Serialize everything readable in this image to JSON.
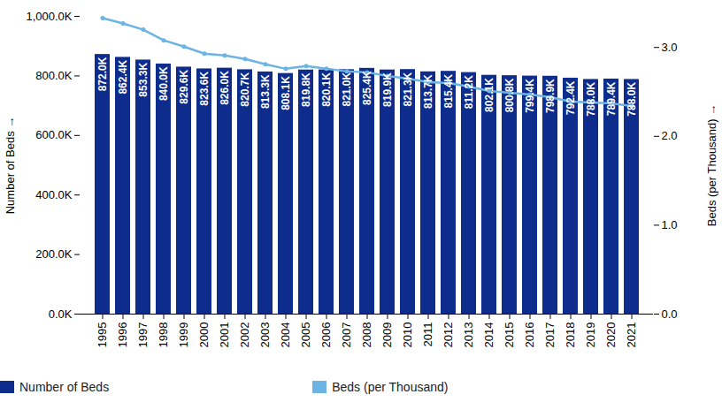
{
  "chart_data": {
    "type": "bar",
    "y_label": "Number of Beds",
    "y2_label": "Beds (per Thousand)",
    "categories": [
      "1995",
      "1996",
      "1997",
      "1998",
      "1999",
      "2000",
      "2001",
      "2002",
      "2003",
      "2004",
      "2005",
      "2006",
      "2007",
      "2008",
      "2009",
      "2010",
      "2011",
      "2012",
      "2013",
      "2014",
      "2015",
      "2016",
      "2017",
      "2018",
      "2019",
      "2020",
      "2021"
    ],
    "series": [
      {
        "name": "Number of Beds",
        "type": "bar",
        "color": "#0d2c8c",
        "values": [
          872000,
          862400,
          853300,
          840000,
          829600,
          823600,
          826000,
          820700,
          813300,
          808100,
          819800,
          820100,
          821000,
          825400,
          819900,
          821300,
          813700,
          815400,
          811200,
          802100,
          800800,
          799400,
          798900,
          792400,
          788000,
          789400,
          788000
        ],
        "value_labels": [
          "872.0K",
          "862.4K",
          "853.3K",
          "840.0K",
          "829.6K",
          "823.6K",
          "826.0K",
          "820.7K",
          "813.3K",
          "808.1K",
          "819.8K",
          "820.1K",
          "821.0K",
          "825.4K",
          "819.9K",
          "821.3K",
          "813.7K",
          "815.4K",
          "811.2K",
          "802.1K",
          "800.8K",
          "799.4K",
          "798.9K",
          "792.4K",
          "788.0K",
          "789.4K",
          "788.0K"
        ]
      },
      {
        "name": "Beds (per Thousand)",
        "type": "line",
        "axis": "y2",
        "color": "#6cb4e4",
        "marker": "circle",
        "values": [
          3.33,
          3.27,
          3.2,
          3.08,
          3.01,
          2.93,
          2.91,
          2.87,
          2.81,
          2.76,
          2.79,
          2.76,
          2.73,
          2.72,
          2.68,
          2.65,
          2.61,
          2.6,
          2.56,
          2.51,
          2.49,
          2.47,
          2.44,
          2.39,
          2.38,
          2.37,
          2.34
        ]
      }
    ],
    "ylim": [
      0,
      1000000
    ],
    "yticks": [
      {
        "value": 0,
        "label": "0.0K"
      },
      {
        "value": 200000,
        "label": "200.0K"
      },
      {
        "value": 400000,
        "label": "400.0K"
      },
      {
        "value": 600000,
        "label": "600.0K"
      },
      {
        "value": 800000,
        "label": "800.0K"
      },
      {
        "value": 1000000,
        "label": "1,000.0K"
      }
    ],
    "y2lim": [
      0,
      3.35
    ],
    "y2ticks": [
      {
        "value": 0,
        "label": "0.0"
      },
      {
        "value": 1,
        "label": "1.0"
      },
      {
        "value": 2,
        "label": "2.0"
      },
      {
        "value": 3,
        "label": "3.0"
      }
    ],
    "data_labels": true,
    "grid": false,
    "legend": "bottom"
  }
}
